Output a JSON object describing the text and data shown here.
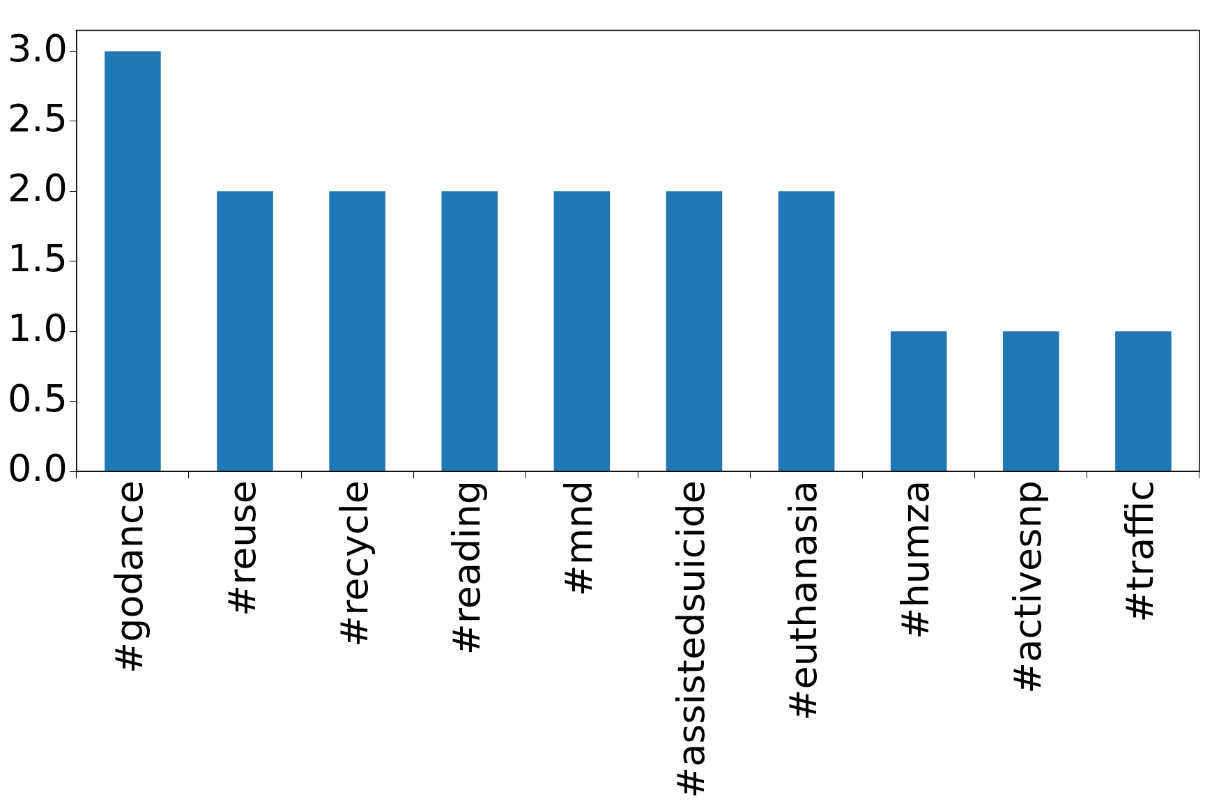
{
  "chart_data": {
    "type": "bar",
    "categories": [
      "#godance",
      "#reuse",
      "#recycle",
      "#reading",
      "#mnd",
      "#assistedsuicide",
      "#euthanasia",
      "#humza",
      "#activesnp",
      "#traffic"
    ],
    "values": [
      3,
      2,
      2,
      2,
      2,
      2,
      2,
      1,
      1,
      1
    ],
    "color": "#1f77b4",
    "ylim": [
      0,
      3.15
    ],
    "yticks": [
      {
        "value": 0,
        "label": "0.0"
      },
      {
        "value": 0.5,
        "label": "0.5"
      },
      {
        "value": 1,
        "label": "1.0"
      },
      {
        "value": 1.5,
        "label": "1.5"
      },
      {
        "value": 2,
        "label": "2.0"
      },
      {
        "value": 2.5,
        "label": "2.5"
      },
      {
        "value": 3,
        "label": "3.0"
      }
    ],
    "legend": false
  }
}
